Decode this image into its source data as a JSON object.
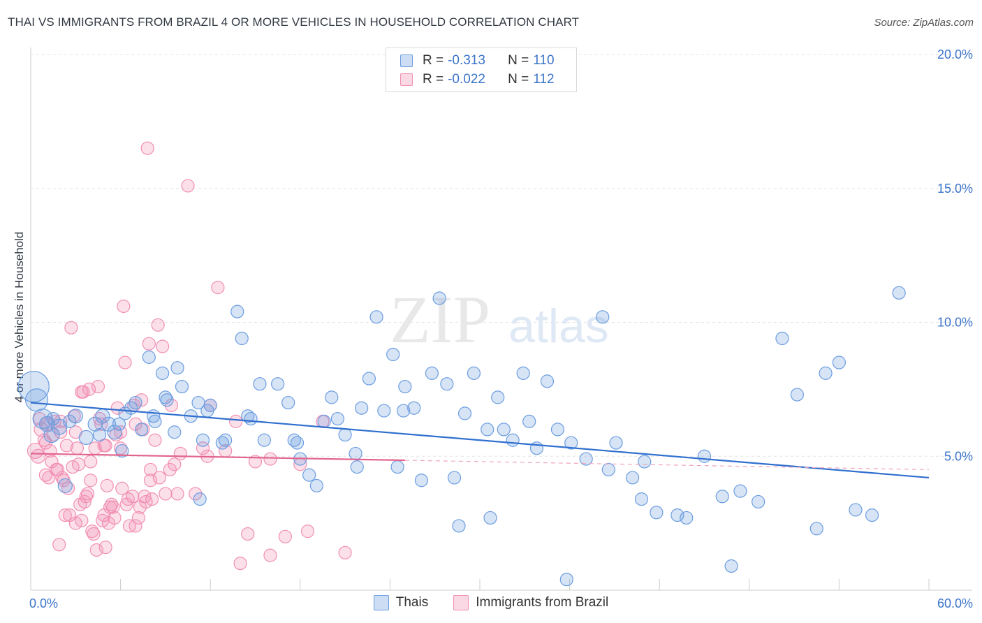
{
  "title": "THAI VS IMMIGRANTS FROM BRAZIL 4 OR MORE VEHICLES IN HOUSEHOLD CORRELATION CHART",
  "source": "Source: ZipAtlas.com",
  "watermark": {
    "part1": "ZIP",
    "part2": "atlas"
  },
  "stats": [
    {
      "r_label": "R = ",
      "r_value": "-0.313",
      "n_label": "N = ",
      "n_value": "110",
      "color": "#6c9de0"
    },
    {
      "r_label": "R = ",
      "r_value": "-0.022",
      "n_label": "N = ",
      "n_value": "112",
      "color": "#f28fb2"
    }
  ],
  "legend": [
    {
      "label": "Thais",
      "color": "#6c9de0"
    },
    {
      "label": "Immigrants from Brazil",
      "color": "#f28fb2"
    }
  ],
  "chart_data": {
    "type": "scatter",
    "xlabel": "",
    "ylabel": "4 or more Vehicles in Household",
    "xlim": [
      0,
      60
    ],
    "ylim": [
      0,
      20
    ],
    "x_tick_labels": [
      "0.0%",
      "60.0%"
    ],
    "y_tick_labels": [
      "5.0%",
      "10.0%",
      "15.0%",
      "20.0%"
    ],
    "y_ticks": [
      5,
      10,
      15,
      20
    ],
    "grid": "horizontal dashed",
    "legend_position": "bottom",
    "series": [
      {
        "name": "Thais",
        "color": "#6c9de0",
        "trend": {
          "x": [
            0,
            60
          ],
          "y": [
            7.0,
            4.2
          ],
          "style": "solid"
        },
        "x": [
          0.2,
          0.4,
          0.8,
          1.1,
          1.4,
          1.9,
          2.3,
          3.0,
          3.7,
          4.3,
          4.8,
          5.2,
          5.6,
          6.1,
          6.3,
          6.7,
          7.0,
          7.4,
          7.9,
          8.3,
          8.8,
          9.1,
          9.6,
          9.8,
          10.1,
          10.7,
          11.2,
          11.5,
          11.8,
          12.0,
          12.8,
          13.0,
          13.8,
          14.1,
          14.7,
          15.3,
          15.6,
          16.5,
          17.2,
          17.6,
          18.0,
          18.6,
          19.1,
          19.6,
          20.1,
          20.5,
          21.0,
          21.7,
          22.1,
          22.6,
          23.1,
          23.6,
          24.2,
          24.5,
          25.0,
          25.6,
          26.1,
          26.8,
          27.3,
          27.8,
          28.3,
          29.0,
          29.6,
          30.5,
          31.2,
          31.6,
          32.2,
          32.9,
          33.3,
          33.8,
          34.5,
          35.2,
          36.1,
          37.1,
          38.2,
          38.6,
          39.1,
          40.2,
          40.8,
          41.8,
          43.2,
          43.8,
          45.0,
          46.2,
          47.4,
          48.6,
          50.2,
          51.2,
          52.5,
          53.1,
          54.0,
          55.1,
          56.2,
          58.0,
          1.5,
          2.6,
          4.6,
          5.9,
          8.2,
          9.0,
          11.3,
          14.5,
          17.8,
          21.8,
          24.9,
          28.6,
          30.7,
          35.8,
          41.0,
          46.8
        ],
        "y": [
          7.6,
          7.1,
          6.4,
          6.2,
          5.8,
          6.1,
          3.9,
          6.5,
          5.7,
          6.2,
          6.5,
          6.2,
          5.9,
          5.2,
          6.6,
          6.8,
          7.0,
          6.0,
          8.7,
          6.3,
          8.1,
          7.1,
          5.9,
          8.3,
          7.6,
          6.5,
          7.0,
          5.6,
          6.7,
          6.9,
          5.5,
          5.6,
          10.4,
          9.4,
          6.4,
          7.7,
          5.6,
          7.7,
          7.0,
          5.6,
          4.9,
          4.3,
          3.9,
          6.3,
          7.2,
          6.4,
          5.8,
          5.1,
          6.8,
          7.9,
          10.2,
          6.7,
          8.8,
          4.6,
          7.6,
          6.8,
          4.1,
          8.1,
          10.9,
          7.7,
          4.2,
          6.6,
          8.1,
          6.0,
          7.2,
          6.0,
          5.6,
          8.1,
          6.3,
          5.3,
          7.8,
          6.0,
          5.5,
          4.9,
          10.2,
          4.5,
          5.5,
          4.2,
          3.4,
          2.9,
          2.8,
          2.7,
          5.0,
          3.5,
          3.7,
          3.3,
          9.4,
          7.3,
          2.3,
          8.1,
          8.5,
          3.0,
          2.8,
          11.1,
          6.4,
          6.3,
          5.8,
          6.2,
          6.5,
          7.2,
          3.4,
          6.5,
          5.5,
          4.6,
          6.7,
          2.4,
          2.7,
          0.4,
          4.8,
          0.9
        ],
        "sizes": [
          22,
          16,
          14,
          11,
          11,
          11,
          10,
          10,
          10,
          10,
          10,
          10,
          10,
          9,
          9,
          9,
          9,
          9,
          9,
          9,
          9,
          9,
          9,
          9,
          9,
          9,
          9,
          9,
          9,
          9,
          9,
          9,
          9,
          9,
          9,
          9,
          9,
          9,
          9,
          9,
          9,
          9,
          9,
          9,
          9,
          9,
          9,
          9,
          9,
          9,
          9,
          9,
          9,
          9,
          9,
          9,
          9,
          9,
          9,
          9,
          9,
          9,
          9,
          9,
          9,
          9,
          9,
          9,
          9,
          9,
          9,
          9,
          9,
          9,
          9,
          9,
          9,
          9,
          9,
          9,
          9,
          9,
          9,
          9,
          9,
          9,
          9,
          9,
          9,
          9,
          9,
          9,
          9,
          9,
          9,
          9,
          9,
          9,
          9,
          9,
          9,
          9,
          9,
          9,
          9,
          9,
          9,
          9,
          9,
          9
        ]
      },
      {
        "name": "Immigrants from Brazil",
        "color": "#f28fb2",
        "trend": {
          "x": [
            0,
            25
          ],
          "y": [
            5.1,
            4.85
          ],
          "style": "solid",
          "extended_to": [
            60,
            4.5
          ],
          "extended_style": "dashed"
        },
        "x": [
          0.3,
          0.5,
          0.7,
          0.9,
          1.1,
          1.2,
          1.4,
          1.5,
          1.6,
          1.8,
          2.0,
          2.1,
          2.2,
          2.4,
          2.6,
          2.7,
          2.8,
          3.0,
          3.1,
          3.3,
          3.4,
          3.5,
          3.6,
          3.8,
          3.9,
          4.0,
          4.1,
          4.2,
          4.4,
          4.5,
          4.6,
          4.8,
          4.9,
          5.0,
          5.1,
          5.3,
          5.4,
          5.5,
          5.6,
          5.8,
          6.0,
          6.1,
          6.2,
          6.4,
          6.6,
          6.8,
          7.0,
          7.2,
          7.4,
          7.5,
          7.7,
          7.9,
          8.1,
          8.3,
          8.5,
          8.8,
          9.0,
          9.3,
          9.6,
          10.0,
          10.5,
          11.0,
          11.5,
          12.0,
          12.5,
          13.0,
          14.0,
          14.5,
          15.0,
          16.0,
          17.0,
          18.0,
          19.5,
          21.0,
          0.6,
          1.0,
          1.3,
          1.7,
          2.3,
          2.9,
          3.2,
          3.7,
          4.3,
          4.7,
          5.2,
          5.7,
          6.3,
          6.9,
          7.3,
          7.8,
          8.6,
          9.4,
          1.9,
          2.5,
          3.4,
          4.9,
          6.5,
          7.6,
          8.0,
          9.8,
          11.8,
          13.7,
          16.0,
          18.5,
          1.0,
          2.0,
          3.0,
          4.0,
          5.0,
          6.0,
          7.0,
          8.0
        ],
        "y": [
          5.2,
          5.0,
          6.0,
          5.6,
          6.2,
          4.2,
          4.8,
          5.8,
          6.3,
          4.5,
          5.9,
          4.2,
          4.1,
          5.4,
          2.8,
          9.8,
          4.6,
          2.5,
          5.3,
          3.2,
          2.6,
          7.4,
          3.3,
          3.6,
          7.5,
          4.8,
          2.2,
          2.1,
          1.5,
          7.6,
          6.4,
          2.6,
          5.4,
          1.6,
          3.9,
          3.1,
          3.2,
          3.1,
          2.7,
          6.8,
          5.3,
          3.8,
          10.6,
          3.2,
          2.4,
          3.5,
          2.4,
          2.7,
          7.1,
          6.0,
          3.3,
          9.2,
          3.4,
          5.6,
          9.9,
          9.1,
          3.6,
          4.5,
          4.7,
          5.1,
          15.1,
          3.6,
          5.3,
          6.9,
          11.3,
          5.2,
          1.0,
          2.1,
          4.8,
          1.3,
          2.0,
          4.7,
          6.3,
          1.4,
          6.4,
          4.3,
          5.2,
          4.5,
          2.8,
          6.5,
          4.7,
          3.5,
          5.3,
          6.2,
          2.5,
          5.8,
          8.5,
          6.9,
          3.1,
          16.5,
          4.2,
          6.9,
          1.7,
          3.8,
          7.4,
          2.8,
          3.4,
          3.5,
          4.1,
          3.6,
          5.0,
          6.3,
          4.9,
          2.2,
          5.5,
          6.3,
          5.9,
          4.1,
          5.4,
          5.9,
          6.2,
          4.5
        ],
        "sizes": [
          11,
          10,
          10,
          9,
          9,
          9,
          9,
          9,
          9,
          9,
          9,
          9,
          9,
          9,
          9,
          9,
          9,
          9,
          9,
          9,
          9,
          9,
          9,
          9,
          9,
          9,
          9,
          9,
          9,
          9,
          9,
          9,
          9,
          9,
          9,
          9,
          9,
          9,
          9,
          9,
          9,
          9,
          9,
          9,
          9,
          9,
          9,
          9,
          9,
          9,
          9,
          9,
          9,
          9,
          9,
          9,
          9,
          9,
          9,
          9,
          9,
          9,
          9,
          9,
          9,
          9,
          9,
          9,
          9,
          9,
          9,
          9,
          9,
          9,
          9,
          9,
          9,
          9,
          9,
          9,
          9,
          9,
          9,
          9,
          9,
          9,
          9,
          9,
          9,
          9,
          9,
          9,
          9,
          9,
          9,
          9,
          9,
          9,
          9,
          9,
          9,
          9,
          9,
          9,
          9,
          9,
          9,
          9,
          9,
          9,
          9,
          9
        ]
      }
    ]
  }
}
